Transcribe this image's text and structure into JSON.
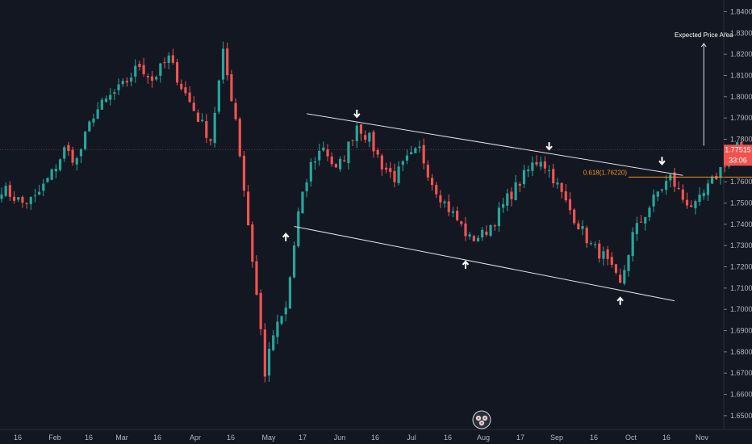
{
  "chart_data": {
    "type": "candlestick",
    "title": "",
    "xlabel": "",
    "ylabel": "",
    "ylim": [
      1.6435,
      1.8455
    ],
    "grid": false,
    "colors": {
      "background": "#131722",
      "up": "#26a69a",
      "down": "#ef5350",
      "annotation": "#ffffff",
      "fib": "#f7931a",
      "price_tag": "#ef5350"
    },
    "x_ticks": [
      "16",
      "Feb",
      "16",
      "Mar",
      "16",
      "Apr",
      "16",
      "May",
      "17",
      "Jun",
      "16",
      "Jul",
      "16",
      "Aug",
      "17",
      "Sep",
      "16",
      "Oct",
      "16",
      "Nov"
    ],
    "y_ticks": [
      "1.84000",
      "1.83000",
      "1.82000",
      "1.81000",
      "1.80000",
      "1.79000",
      "1.78000",
      "1.76000",
      "1.75000",
      "1.74000",
      "1.73000",
      "1.72000",
      "1.71000",
      "1.70000",
      "1.69000",
      "1.68000",
      "1.67000",
      "1.66000",
      "1.65000"
    ],
    "anchors": [
      [
        0,
        1.757
      ],
      [
        5,
        1.75
      ],
      [
        8,
        1.752
      ],
      [
        12,
        1.764
      ],
      [
        15,
        1.775
      ],
      [
        18,
        1.77
      ],
      [
        22,
        1.792
      ],
      [
        26,
        1.8
      ],
      [
        29,
        1.805
      ],
      [
        33,
        1.815
      ],
      [
        36,
        1.808
      ],
      [
        40,
        1.818
      ],
      [
        43,
        1.805
      ],
      [
        47,
        1.79
      ],
      [
        50,
        1.78
      ],
      [
        53,
        1.82
      ],
      [
        56,
        1.79
      ],
      [
        59,
        1.74
      ],
      [
        62,
        1.69
      ],
      [
        63,
        1.67
      ],
      [
        65,
        1.688
      ],
      [
        68,
        1.7
      ],
      [
        71,
        1.745
      ],
      [
        74,
        1.768
      ],
      [
        77,
        1.777
      ],
      [
        80,
        1.765
      ],
      [
        82,
        1.772
      ],
      [
        85,
        1.787
      ],
      [
        88,
        1.78
      ],
      [
        91,
        1.768
      ],
      [
        94,
        1.762
      ],
      [
        97,
        1.77
      ],
      [
        100,
        1.775
      ],
      [
        103,
        1.76
      ],
      [
        106,
        1.75
      ],
      [
        109,
        1.742
      ],
      [
        112,
        1.733
      ],
      [
        115,
        1.735
      ],
      [
        118,
        1.742
      ],
      [
        121,
        1.752
      ],
      [
        124,
        1.76
      ],
      [
        127,
        1.768
      ],
      [
        129,
        1.771
      ],
      [
        132,
        1.762
      ],
      [
        135,
        1.75
      ],
      [
        138,
        1.74
      ],
      [
        141,
        1.73
      ],
      [
        144,
        1.725
      ],
      [
        146,
        1.718
      ],
      [
        148,
        1.711
      ],
      [
        151,
        1.735
      ],
      [
        154,
        1.745
      ],
      [
        157,
        1.755
      ],
      [
        160,
        1.762
      ],
      [
        163,
        1.752
      ],
      [
        166,
        1.748
      ],
      [
        169,
        1.757
      ],
      [
        172,
        1.766
      ],
      [
        175,
        1.775
      ],
      [
        177,
        1.779
      ]
    ],
    "price_label": "1.77515",
    "countdown_label": "33:06",
    "last_price": 1.77515,
    "channel_upper": [
      [
        73,
        1.792
      ],
      [
        163,
        1.763
      ]
    ],
    "channel_lower": [
      [
        70,
        1.739
      ],
      [
        161,
        1.704
      ]
    ],
    "fib_level": {
      "label": "0.618(1.76220)",
      "value": 1.7622,
      "x_start": 150,
      "x_end": 195
    },
    "expected_arrow": {
      "x": 168,
      "from": 1.777,
      "to": 1.825,
      "label": "Expected Price Area"
    },
    "markers": [
      {
        "type": "down",
        "x": 85,
        "price": 1.7905
      },
      {
        "type": "down",
        "x": 131,
        "price": 1.7752
      },
      {
        "type": "down",
        "x": 158,
        "price": 1.7683
      },
      {
        "type": "up",
        "x": 111,
        "price": 1.7225
      },
      {
        "type": "up",
        "x": 148,
        "price": 1.7055
      },
      {
        "type": "up",
        "x": 68,
        "price": 1.7355
      }
    ]
  }
}
